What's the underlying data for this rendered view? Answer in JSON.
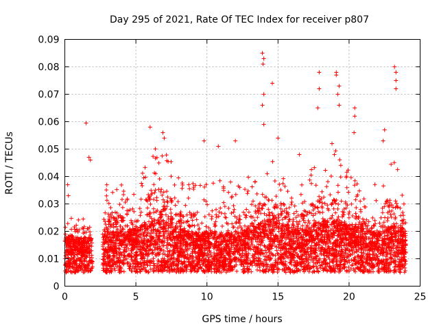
{
  "chart_data": {
    "type": "scatter",
    "title": "Day 295 of 2021, Rate Of TEC Index for receiver p807",
    "xlabel": "GPS time / hours",
    "ylabel": "ROTI / TECUs",
    "xlim": [
      0,
      25
    ],
    "ylim": [
      0,
      0.09
    ],
    "x_ticks": [
      "0",
      "5",
      "10",
      "15",
      "20",
      "25"
    ],
    "y_ticks": [
      "0",
      "0.01",
      "0.02",
      "0.03",
      "0.04",
      "0.05",
      "0.06",
      "0.07",
      "0.08",
      "0.09"
    ],
    "grid": true,
    "marker": "+",
    "color": "#ff0000",
    "data_gap_hours": [
      1.95,
      2.65
    ],
    "envelope": {
      "hours": [
        0,
        1,
        2,
        3,
        4,
        5,
        6,
        7,
        8,
        9,
        10,
        11,
        12,
        13,
        14,
        15,
        16,
        17,
        18,
        19,
        20,
        21,
        22,
        23,
        24
      ],
      "typical_roti": [
        0.012,
        0.012,
        0.012,
        0.013,
        0.014,
        0.014,
        0.016,
        0.016,
        0.014,
        0.013,
        0.013,
        0.013,
        0.013,
        0.014,
        0.016,
        0.017,
        0.014,
        0.014,
        0.016,
        0.016,
        0.015,
        0.014,
        0.013,
        0.015,
        0.014
      ],
      "upper_roti": [
        0.028,
        0.025,
        0.026,
        0.038,
        0.04,
        0.034,
        0.05,
        0.052,
        0.04,
        0.038,
        0.04,
        0.04,
        0.04,
        0.04,
        0.045,
        0.048,
        0.035,
        0.04,
        0.048,
        0.05,
        0.042,
        0.034,
        0.038,
        0.048,
        0.036
      ]
    },
    "notable_points": [
      {
        "x": 0.2,
        "y": 0.037
      },
      {
        "x": 0.25,
        "y": 0.033
      },
      {
        "x": 1.5,
        "y": 0.0595
      },
      {
        "x": 1.8,
        "y": 0.046
      },
      {
        "x": 1.7,
        "y": 0.047
      },
      {
        "x": 6.0,
        "y": 0.058
      },
      {
        "x": 6.9,
        "y": 0.056
      },
      {
        "x": 7.0,
        "y": 0.054
      },
      {
        "x": 9.8,
        "y": 0.053
      },
      {
        "x": 10.8,
        "y": 0.051
      },
      {
        "x": 12.0,
        "y": 0.053
      },
      {
        "x": 13.9,
        "y": 0.085
      },
      {
        "x": 14.0,
        "y": 0.083
      },
      {
        "x": 13.95,
        "y": 0.081
      },
      {
        "x": 14.0,
        "y": 0.07
      },
      {
        "x": 13.9,
        "y": 0.066
      },
      {
        "x": 14.0,
        "y": 0.059
      },
      {
        "x": 14.6,
        "y": 0.074
      },
      {
        "x": 17.9,
        "y": 0.078
      },
      {
        "x": 17.9,
        "y": 0.072
      },
      {
        "x": 17.8,
        "y": 0.065
      },
      {
        "x": 19.1,
        "y": 0.078
      },
      {
        "x": 19.1,
        "y": 0.077
      },
      {
        "x": 19.3,
        "y": 0.073
      },
      {
        "x": 19.2,
        "y": 0.07
      },
      {
        "x": 19.3,
        "y": 0.066
      },
      {
        "x": 20.4,
        "y": 0.065
      },
      {
        "x": 20.4,
        "y": 0.062
      },
      {
        "x": 20.35,
        "y": 0.056
      },
      {
        "x": 23.2,
        "y": 0.08
      },
      {
        "x": 23.3,
        "y": 0.078
      },
      {
        "x": 23.3,
        "y": 0.075
      },
      {
        "x": 23.3,
        "y": 0.072
      },
      {
        "x": 22.5,
        "y": 0.057
      },
      {
        "x": 22.4,
        "y": 0.053
      },
      {
        "x": 15.0,
        "y": 0.054
      },
      {
        "x": 18.8,
        "y": 0.052
      },
      {
        "x": 16.5,
        "y": 0.048
      }
    ]
  }
}
